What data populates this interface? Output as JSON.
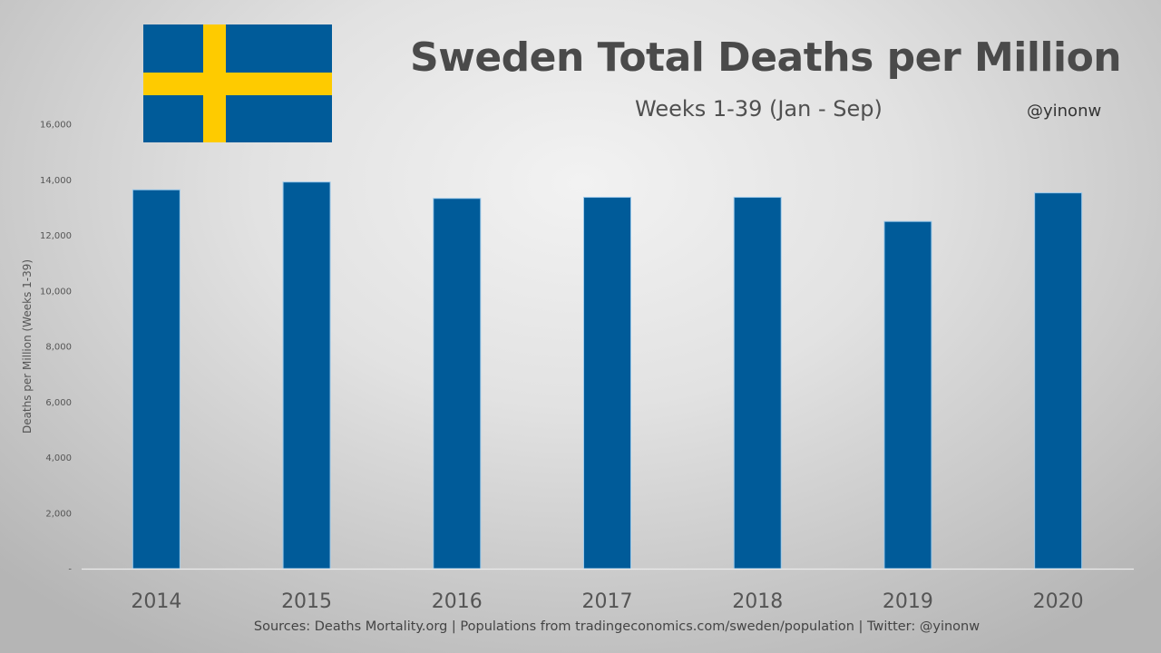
{
  "header": {
    "title": "Sweden Total Deaths per Million",
    "subtitle": "Weeks 1-39 (Jan - Sep)",
    "handle": "@yinonw",
    "flag_icon": "sweden-flag-icon"
  },
  "footer": {
    "source": "Sources: Deaths Mortality.org  | Populations from tradingeconomics.com/sweden/population  | Twitter: @yinonw"
  },
  "colors": {
    "bar": "#005b99",
    "flag_blue": "#005b99",
    "flag_yellow": "#fecb00"
  },
  "chart_data": {
    "type": "bar",
    "title": "Sweden Total Deaths per Million",
    "subtitle": "Weeks 1-39 (Jan - Sep)",
    "xlabel": "",
    "ylabel": "Deaths per Million (Weeks 1-39)",
    "categories": [
      "2014",
      "2015",
      "2016",
      "2017",
      "2018",
      "2019",
      "2020"
    ],
    "values": [
      13640,
      13920,
      13330,
      13370,
      13370,
      12500,
      13530
    ],
    "ylim": [
      0,
      16000
    ],
    "yticks": [
      0,
      2000,
      4000,
      6000,
      8000,
      10000,
      12000,
      14000,
      16000
    ],
    "ytick_labels": [
      "-",
      "2,000",
      "4,000",
      "6,000",
      "8,000",
      "10,000",
      "12,000",
      "14,000",
      "16,000"
    ],
    "grid": false,
    "legend": "none"
  }
}
